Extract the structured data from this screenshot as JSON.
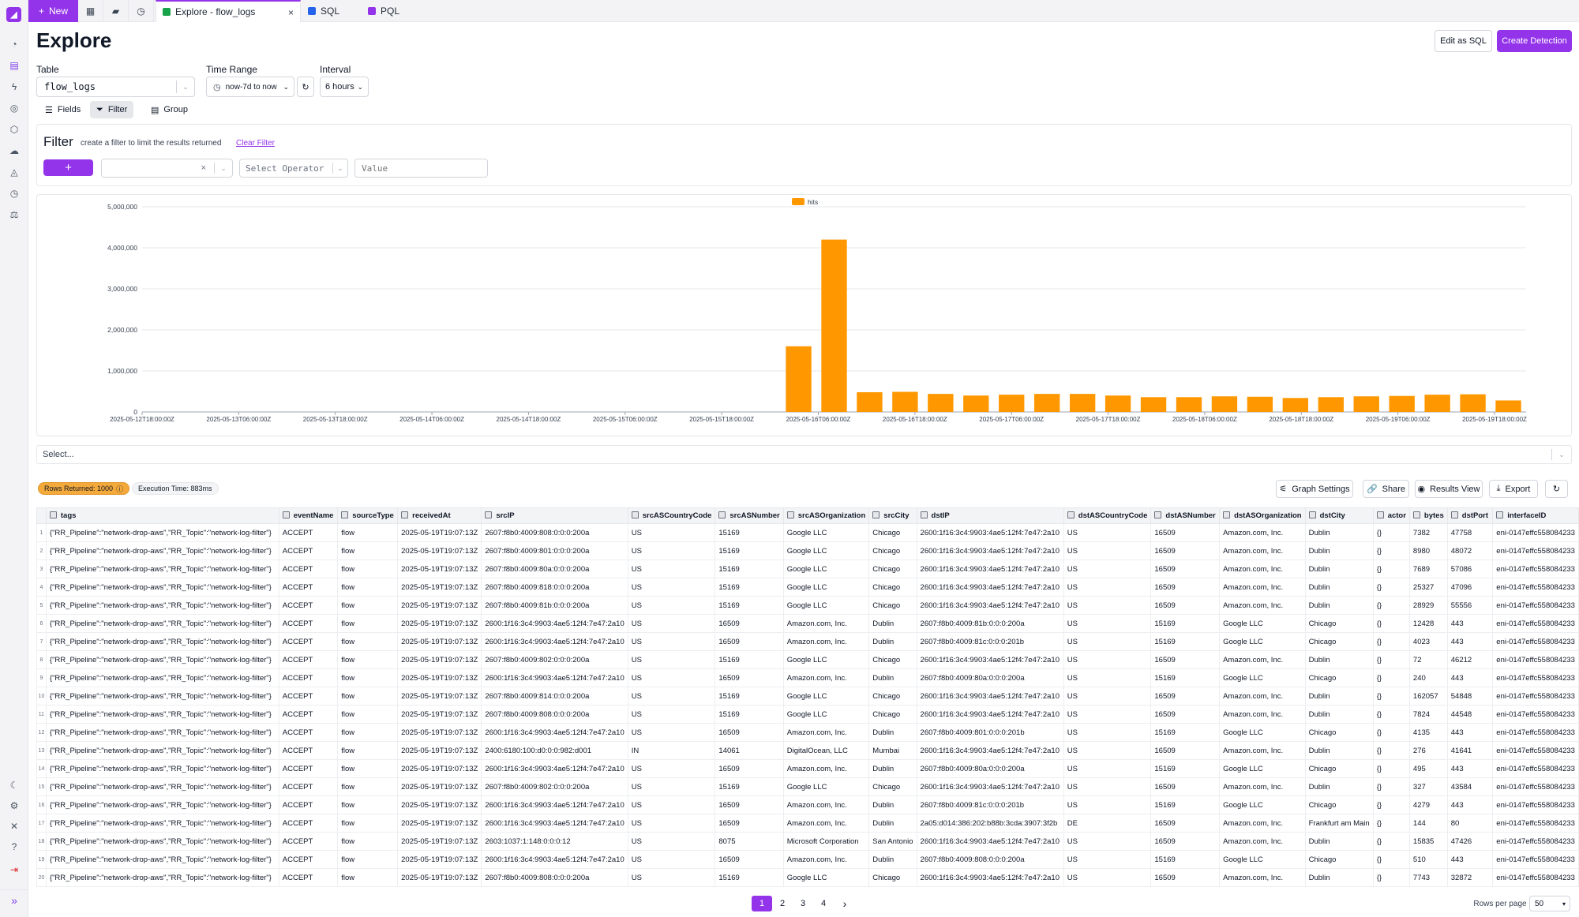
{
  "tabbar": {
    "new_label": "New",
    "tabs": [
      {
        "label": "Explore - flow_logs",
        "close": "×",
        "color": "#16a34a"
      },
      {
        "label": "SQL",
        "color": "#2563eb"
      },
      {
        "label": "PQL",
        "color": "#9333ea"
      }
    ]
  },
  "header": {
    "title": "Explore",
    "edit_sql": "Edit as SQL",
    "create_detection": "Create Detection"
  },
  "controls": {
    "table_label": "Table",
    "table_value": "flow_logs",
    "time_label": "Time Range",
    "time_value": "now-7d to now",
    "interval_label": "Interval",
    "interval_value": "6 hours"
  },
  "view_tabs": {
    "fields": "Fields",
    "filter": "Filter",
    "group": "Group"
  },
  "filter": {
    "title": "Filter",
    "hint": "create a filter to limit the results returned",
    "clear": "Clear Filter",
    "add": "+",
    "field_clear": "×",
    "operator_placeholder": "Select Operator",
    "value_placeholder": "Value"
  },
  "select_placeholder": "Select...",
  "results": {
    "rows_returned": "Rows Returned: 1000",
    "execution_time": "Execution Time: 883ms",
    "graph_settings": "Graph Settings",
    "share": "Share",
    "results_view": "Results View",
    "export": "Export"
  },
  "chart_data": {
    "type": "bar",
    "title": "",
    "xlabel": "",
    "ylabel": "",
    "legend": "top-center",
    "grid": true,
    "series": [
      {
        "name": "hits",
        "values": [
          0,
          0,
          0,
          0,
          0,
          0,
          0,
          0,
          0,
          0,
          0,
          0,
          0,
          0,
          0,
          0,
          0,
          0,
          1600000,
          4200000,
          480000,
          490000,
          440000,
          400000,
          420000,
          440000,
          440000,
          400000,
          360000,
          360000,
          380000,
          370000,
          340000,
          360000,
          380000,
          390000,
          420000,
          430000,
          280000
        ]
      }
    ],
    "color": "#ff9800",
    "ylim": [
      0,
      5000000
    ],
    "yticks": [
      "0",
      "1,000,000",
      "2,000,000",
      "3,000,000",
      "4,000,000",
      "5,000,000"
    ],
    "xticks": [
      "2025-05-12T18:00:00Z",
      "2025-05-13T06:00:00Z",
      "2025-05-13T18:00:00Z",
      "2025-05-14T06:00:00Z",
      "2025-05-14T18:00:00Z",
      "2025-05-15T06:00:00Z",
      "2025-05-15T18:00:00Z",
      "2025-05-16T06:00:00Z",
      "2025-05-16T18:00:00Z",
      "2025-05-17T06:00:00Z",
      "2025-05-17T18:00:00Z",
      "2025-05-18T06:00:00Z",
      "2025-05-18T18:00:00Z",
      "2025-05-19T06:00:00Z",
      "2025-05-19T18:00:00Z"
    ]
  },
  "table": {
    "columns": [
      "tags",
      "eventName",
      "sourceType",
      "receivedAt",
      "srcIP",
      "srcASCountryCode",
      "srcASNumber",
      "srcASOrganization",
      "srcCity",
      "dstIP",
      "dstASCountryCode",
      "dstASNumber",
      "dstASOrganization",
      "dstCity",
      "actor",
      "bytes",
      "dstPort",
      "interfaceID"
    ],
    "rows": [
      [
        "1",
        "{\"RR_Pipeline\":\"network-drop-aws\",\"RR_Topic\":\"network-log-filter\"}",
        "ACCEPT",
        "flow",
        "2025-05-19T19:07:13Z",
        "2607:f8b0:4009:808:0:0:0:200a",
        "US",
        "15169",
        "Google LLC",
        "Chicago",
        "2600:1f16:3c4:9903:4ae5:12f4:7e47:2a10",
        "US",
        "16509",
        "Amazon.com, Inc.",
        "Dublin",
        "{}",
        "7382",
        "47758",
        "eni-0147effc558084233"
      ],
      [
        "2",
        "{\"RR_Pipeline\":\"network-drop-aws\",\"RR_Topic\":\"network-log-filter\"}",
        "ACCEPT",
        "flow",
        "2025-05-19T19:07:13Z",
        "2607:f8b0:4009:801:0:0:0:200a",
        "US",
        "15169",
        "Google LLC",
        "Chicago",
        "2600:1f16:3c4:9903:4ae5:12f4:7e47:2a10",
        "US",
        "16509",
        "Amazon.com, Inc.",
        "Dublin",
        "{}",
        "8980",
        "48072",
        "eni-0147effc558084233"
      ],
      [
        "3",
        "{\"RR_Pipeline\":\"network-drop-aws\",\"RR_Topic\":\"network-log-filter\"}",
        "ACCEPT",
        "flow",
        "2025-05-19T19:07:13Z",
        "2607:f8b0:4009:80a:0:0:0:200a",
        "US",
        "15169",
        "Google LLC",
        "Chicago",
        "2600:1f16:3c4:9903:4ae5:12f4:7e47:2a10",
        "US",
        "16509",
        "Amazon.com, Inc.",
        "Dublin",
        "{}",
        "7689",
        "57086",
        "eni-0147effc558084233"
      ],
      [
        "4",
        "{\"RR_Pipeline\":\"network-drop-aws\",\"RR_Topic\":\"network-log-filter\"}",
        "ACCEPT",
        "flow",
        "2025-05-19T19:07:13Z",
        "2607:f8b0:4009:818:0:0:0:200a",
        "US",
        "15169",
        "Google LLC",
        "Chicago",
        "2600:1f16:3c4:9903:4ae5:12f4:7e47:2a10",
        "US",
        "16509",
        "Amazon.com, Inc.",
        "Dublin",
        "{}",
        "25327",
        "47096",
        "eni-0147effc558084233"
      ],
      [
        "5",
        "{\"RR_Pipeline\":\"network-drop-aws\",\"RR_Topic\":\"network-log-filter\"}",
        "ACCEPT",
        "flow",
        "2025-05-19T19:07:13Z",
        "2607:f8b0:4009:81b:0:0:0:200a",
        "US",
        "15169",
        "Google LLC",
        "Chicago",
        "2600:1f16:3c4:9903:4ae5:12f4:7e47:2a10",
        "US",
        "16509",
        "Amazon.com, Inc.",
        "Dublin",
        "{}",
        "28929",
        "55556",
        "eni-0147effc558084233"
      ],
      [
        "6",
        "{\"RR_Pipeline\":\"network-drop-aws\",\"RR_Topic\":\"network-log-filter\"}",
        "ACCEPT",
        "flow",
        "2025-05-19T19:07:13Z",
        "2600:1f16:3c4:9903:4ae5:12f4:7e47:2a10",
        "US",
        "16509",
        "Amazon.com, Inc.",
        "Dublin",
        "2607:f8b0:4009:81b:0:0:0:200a",
        "US",
        "15169",
        "Google LLC",
        "Chicago",
        "{}",
        "12428",
        "443",
        "eni-0147effc558084233"
      ],
      [
        "7",
        "{\"RR_Pipeline\":\"network-drop-aws\",\"RR_Topic\":\"network-log-filter\"}",
        "ACCEPT",
        "flow",
        "2025-05-19T19:07:13Z",
        "2600:1f16:3c4:9903:4ae5:12f4:7e47:2a10",
        "US",
        "16509",
        "Amazon.com, Inc.",
        "Dublin",
        "2607:f8b0:4009:81c:0:0:0:201b",
        "US",
        "15169",
        "Google LLC",
        "Chicago",
        "{}",
        "4023",
        "443",
        "eni-0147effc558084233"
      ],
      [
        "8",
        "{\"RR_Pipeline\":\"network-drop-aws\",\"RR_Topic\":\"network-log-filter\"}",
        "ACCEPT",
        "flow",
        "2025-05-19T19:07:13Z",
        "2607:f8b0:4009:802:0:0:0:200a",
        "US",
        "15169",
        "Google LLC",
        "Chicago",
        "2600:1f16:3c4:9903:4ae5:12f4:7e47:2a10",
        "US",
        "16509",
        "Amazon.com, Inc.",
        "Dublin",
        "{}",
        "72",
        "46212",
        "eni-0147effc558084233"
      ],
      [
        "9",
        "{\"RR_Pipeline\":\"network-drop-aws\",\"RR_Topic\":\"network-log-filter\"}",
        "ACCEPT",
        "flow",
        "2025-05-19T19:07:13Z",
        "2600:1f16:3c4:9903:4ae5:12f4:7e47:2a10",
        "US",
        "16509",
        "Amazon.com, Inc.",
        "Dublin",
        "2607:f8b0:4009:80a:0:0:0:200a",
        "US",
        "15169",
        "Google LLC",
        "Chicago",
        "{}",
        "240",
        "443",
        "eni-0147effc558084233"
      ],
      [
        "10",
        "{\"RR_Pipeline\":\"network-drop-aws\",\"RR_Topic\":\"network-log-filter\"}",
        "ACCEPT",
        "flow",
        "2025-05-19T19:07:13Z",
        "2607:f8b0:4009:814:0:0:0:200a",
        "US",
        "15169",
        "Google LLC",
        "Chicago",
        "2600:1f16:3c4:9903:4ae5:12f4:7e47:2a10",
        "US",
        "16509",
        "Amazon.com, Inc.",
        "Dublin",
        "{}",
        "162057",
        "54848",
        "eni-0147effc558084233"
      ],
      [
        "11",
        "{\"RR_Pipeline\":\"network-drop-aws\",\"RR_Topic\":\"network-log-filter\"}",
        "ACCEPT",
        "flow",
        "2025-05-19T19:07:13Z",
        "2607:f8b0:4009:808:0:0:0:200a",
        "US",
        "15169",
        "Google LLC",
        "Chicago",
        "2600:1f16:3c4:9903:4ae5:12f4:7e47:2a10",
        "US",
        "16509",
        "Amazon.com, Inc.",
        "Dublin",
        "{}",
        "7824",
        "44548",
        "eni-0147effc558084233"
      ],
      [
        "12",
        "{\"RR_Pipeline\":\"network-drop-aws\",\"RR_Topic\":\"network-log-filter\"}",
        "ACCEPT",
        "flow",
        "2025-05-19T19:07:13Z",
        "2600:1f16:3c4:9903:4ae5:12f4:7e47:2a10",
        "US",
        "16509",
        "Amazon.com, Inc.",
        "Dublin",
        "2607:f8b0:4009:801:0:0:0:201b",
        "US",
        "15169",
        "Google LLC",
        "Chicago",
        "{}",
        "4135",
        "443",
        "eni-0147effc558084233"
      ],
      [
        "13",
        "{\"RR_Pipeline\":\"network-drop-aws\",\"RR_Topic\":\"network-log-filter\"}",
        "ACCEPT",
        "flow",
        "2025-05-19T19:07:13Z",
        "2400:6180:100:d0:0:0:982:d001",
        "IN",
        "14061",
        "DigitalOcean, LLC",
        "Mumbai",
        "2600:1f16:3c4:9903:4ae5:12f4:7e47:2a10",
        "US",
        "16509",
        "Amazon.com, Inc.",
        "Dublin",
        "{}",
        "276",
        "41641",
        "eni-0147effc558084233"
      ],
      [
        "14",
        "{\"RR_Pipeline\":\"network-drop-aws\",\"RR_Topic\":\"network-log-filter\"}",
        "ACCEPT",
        "flow",
        "2025-05-19T19:07:13Z",
        "2600:1f16:3c4:9903:4ae5:12f4:7e47:2a10",
        "US",
        "16509",
        "Amazon.com, Inc.",
        "Dublin",
        "2607:f8b0:4009:80a:0:0:0:200a",
        "US",
        "15169",
        "Google LLC",
        "Chicago",
        "{}",
        "495",
        "443",
        "eni-0147effc558084233"
      ],
      [
        "15",
        "{\"RR_Pipeline\":\"network-drop-aws\",\"RR_Topic\":\"network-log-filter\"}",
        "ACCEPT",
        "flow",
        "2025-05-19T19:07:13Z",
        "2607:f8b0:4009:802:0:0:0:200a",
        "US",
        "15169",
        "Google LLC",
        "Chicago",
        "2600:1f16:3c4:9903:4ae5:12f4:7e47:2a10",
        "US",
        "16509",
        "Amazon.com, Inc.",
        "Dublin",
        "{}",
        "327",
        "43584",
        "eni-0147effc558084233"
      ],
      [
        "16",
        "{\"RR_Pipeline\":\"network-drop-aws\",\"RR_Topic\":\"network-log-filter\"}",
        "ACCEPT",
        "flow",
        "2025-05-19T19:07:13Z",
        "2600:1f16:3c4:9903:4ae5:12f4:7e47:2a10",
        "US",
        "16509",
        "Amazon.com, Inc.",
        "Dublin",
        "2607:f8b0:4009:81c:0:0:0:201b",
        "US",
        "15169",
        "Google LLC",
        "Chicago",
        "{}",
        "4279",
        "443",
        "eni-0147effc558084233"
      ],
      [
        "17",
        "{\"RR_Pipeline\":\"network-drop-aws\",\"RR_Topic\":\"network-log-filter\"}",
        "ACCEPT",
        "flow",
        "2025-05-19T19:07:13Z",
        "2600:1f16:3c4:9903:4ae5:12f4:7e47:2a10",
        "US",
        "16509",
        "Amazon.com, Inc.",
        "Dublin",
        "2a05:d014:386:202:b88b:3cda:3907:3f2b",
        "DE",
        "16509",
        "Amazon.com, Inc.",
        "Frankfurt am Main",
        "{}",
        "144",
        "80",
        "eni-0147effc558084233"
      ],
      [
        "18",
        "{\"RR_Pipeline\":\"network-drop-aws\",\"RR_Topic\":\"network-log-filter\"}",
        "ACCEPT",
        "flow",
        "2025-05-19T19:07:13Z",
        "2603:1037:1:148:0:0:0:12",
        "US",
        "8075",
        "Microsoft Corporation",
        "San Antonio",
        "2600:1f16:3c4:9903:4ae5:12f4:7e47:2a10",
        "US",
        "16509",
        "Amazon.com, Inc.",
        "Dublin",
        "{}",
        "15835",
        "47426",
        "eni-0147effc558084233"
      ],
      [
        "19",
        "{\"RR_Pipeline\":\"network-drop-aws\",\"RR_Topic\":\"network-log-filter\"}",
        "ACCEPT",
        "flow",
        "2025-05-19T19:07:13Z",
        "2600:1f16:3c4:9903:4ae5:12f4:7e47:2a10",
        "US",
        "16509",
        "Amazon.com, Inc.",
        "Dublin",
        "2607:f8b0:4009:808:0:0:0:200a",
        "US",
        "15169",
        "Google LLC",
        "Chicago",
        "{}",
        "510",
        "443",
        "eni-0147effc558084233"
      ],
      [
        "20",
        "{\"RR_Pipeline\":\"network-drop-aws\",\"RR_Topic\":\"network-log-filter\"}",
        "ACCEPT",
        "flow",
        "2025-05-19T19:07:13Z",
        "2607:f8b0:4009:808:0:0:0:200a",
        "US",
        "15169",
        "Google LLC",
        "Chicago",
        "2600:1f16:3c4:9903:4ae5:12f4:7e47:2a10",
        "US",
        "16509",
        "Amazon.com, Inc.",
        "Dublin",
        "{}",
        "7743",
        "32872",
        "eni-0147effc558084233"
      ]
    ]
  },
  "pagination": {
    "pages": [
      "1",
      "2",
      "3",
      "4"
    ],
    "next": "›",
    "rows_per_page_label": "Rows per page",
    "rows_per_page": "50"
  }
}
